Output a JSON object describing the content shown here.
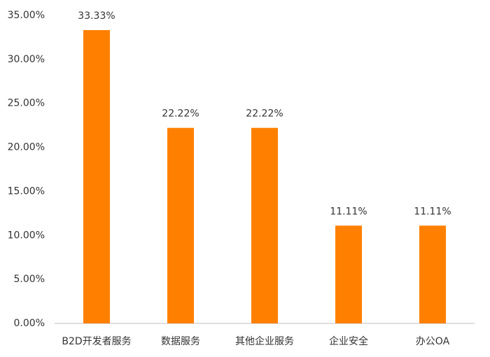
{
  "chart_data": {
    "type": "bar",
    "categories": [
      "B2D开发者服务",
      "数据服务",
      "其他企业服务",
      "企业安全",
      "办公OA"
    ],
    "values": [
      33.33,
      22.22,
      22.22,
      11.11,
      11.11
    ],
    "value_labels": [
      "33.33%",
      "22.22%",
      "22.22%",
      "11.11%",
      "11.11%"
    ],
    "color": "#ff8000",
    "ylim": [
      0,
      35
    ],
    "yticks": [
      {
        "value": 0,
        "label": "0.00%"
      },
      {
        "value": 5,
        "label": "5.00%"
      },
      {
        "value": 10,
        "label": "10.00%"
      },
      {
        "value": 15,
        "label": "15.00%"
      },
      {
        "value": 20,
        "label": "20.00%"
      },
      {
        "value": 25,
        "label": "25.00%"
      },
      {
        "value": 30,
        "label": "30.00%"
      },
      {
        "value": 35,
        "label": "35.00%"
      }
    ],
    "grid": false
  }
}
